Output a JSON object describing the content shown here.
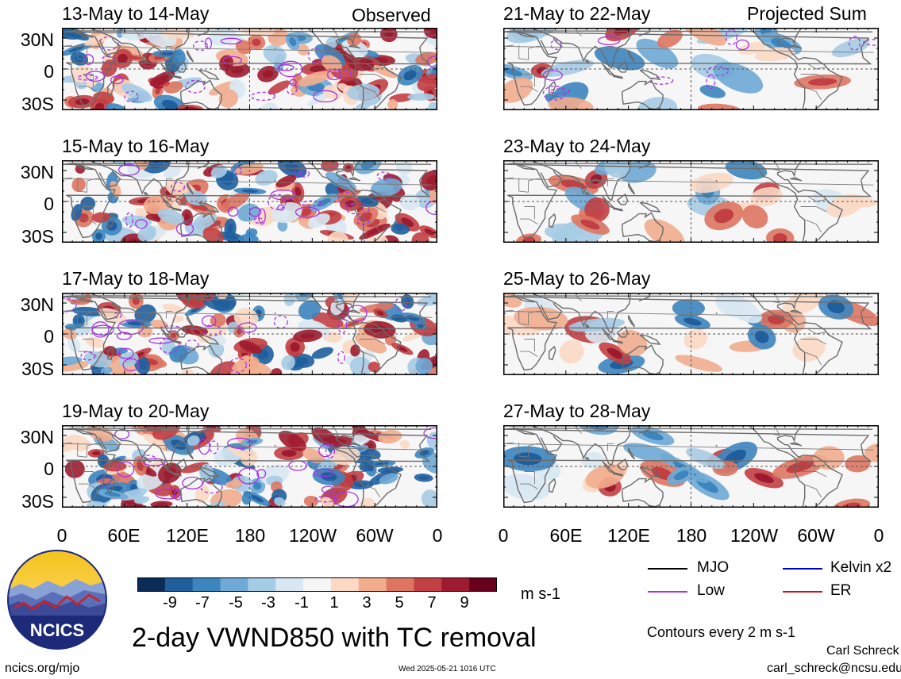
{
  "panels": {
    "left": [
      {
        "title": "13-May to 14-May",
        "label": "Observed"
      },
      {
        "title": "15-May to 16-May"
      },
      {
        "title": "17-May to 18-May"
      },
      {
        "title": "19-May to 20-May"
      }
    ],
    "right": [
      {
        "title": "21-May to 22-May",
        "label": "Projected Sum"
      },
      {
        "title": "23-May to 24-May"
      },
      {
        "title": "25-May to 26-May"
      },
      {
        "title": "27-May to 28-May"
      }
    ]
  },
  "axes": {
    "lat_labels": [
      "30N",
      "0",
      "30S"
    ],
    "lon_labels": [
      "0",
      "60E",
      "120E",
      "180",
      "120W",
      "60W",
      "0"
    ]
  },
  "colorbar": {
    "labels": [
      "-9",
      "-7",
      "-5",
      "-3",
      "-1",
      "1",
      "3",
      "5",
      "7",
      "9"
    ],
    "unit": "m s-1",
    "colors": [
      "#0b2c56",
      "#1f5f9e",
      "#3d85bf",
      "#6eaad5",
      "#a6cbe4",
      "#d8e8f2",
      "#f6f6f6",
      "#fbd9c4",
      "#f2ad8e",
      "#de7562",
      "#c23f43",
      "#9e1b2f",
      "#66001d"
    ]
  },
  "legend": {
    "items": [
      {
        "label": "MJO",
        "color": "#000000"
      },
      {
        "label": "Kelvin x2",
        "color": "#0000cc"
      },
      {
        "label": "Low",
        "color": "#a832e8"
      },
      {
        "label": "ER",
        "color": "#cc1111"
      }
    ],
    "contours_note": "Contours every 2 m s-1"
  },
  "logo": {
    "text": "NCICS"
  },
  "main_title": "2-day VWND850 with TC removal",
  "footer": {
    "url": "ncics.org/mjo",
    "timestamp": "Wed 2025-05-21 1016 UTC",
    "author": "Carl Schreck",
    "email": "carl_schreck@ncsu.edu"
  }
}
